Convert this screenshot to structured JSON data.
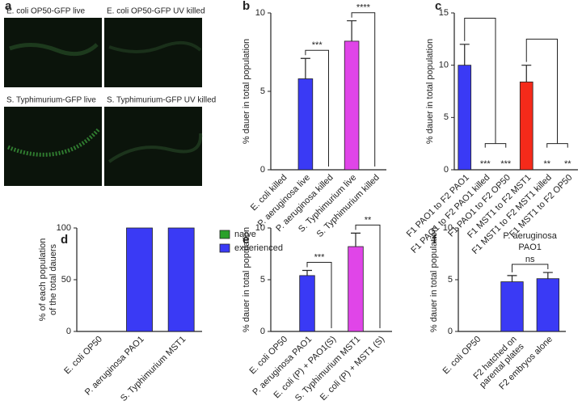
{
  "images": {
    "panel": "a",
    "captions": [
      "E. coli OP50-GFP live",
      "E. coli OP50-GFP UV killed",
      "S. Typhimurium-GFP live",
      "S. Typhimurium-GFP UV killed"
    ]
  },
  "chart_data": [
    {
      "type": "bar",
      "panel": "b",
      "ylabel": "% dauer in total population",
      "categories": [
        "E. coli killed",
        "P. aeruginosa live",
        "P. aeruginosa killed",
        "S. Typhimurium live",
        "S. Typhimurium killed"
      ],
      "values": [
        0,
        5.8,
        0,
        8.2,
        0
      ],
      "errors": [
        0,
        1.3,
        0,
        1.3,
        0
      ],
      "colors": [
        "#3a3af5",
        "#3a3af5",
        "#3a3af5",
        "#e045e8",
        "#e045e8"
      ],
      "ylim": [
        0,
        10
      ],
      "yticks": [
        0,
        5,
        10
      ],
      "brackets": [
        {
          "between": [
            1,
            2
          ],
          "text": "***"
        },
        {
          "between": [
            3,
            4
          ],
          "text": "****"
        }
      ]
    },
    {
      "type": "bar",
      "panel": "c",
      "ylabel": "% dauer in total population",
      "categories": [
        "F1 PAO1 to F2 PAO1",
        "F1 PAO1 to F2 PAO1 killed",
        "F1 PAO1 to F2 OP50",
        "F1 MST1 to F2 MST1",
        "F1 MST1 to F2 MST1 killed",
        "F1 MST1 to F2 OP50"
      ],
      "values": [
        10,
        0,
        0,
        8.4,
        0,
        0
      ],
      "errors": [
        2,
        0,
        0,
        1.6,
        0,
        0
      ],
      "colors": [
        "#3a3af5",
        "#3a3af5",
        "#3a3af5",
        "#f52a1a",
        "#f52a1a",
        "#f52a1a"
      ],
      "bar_labels": [
        null,
        "***",
        "***",
        null,
        "**",
        "**"
      ],
      "ylim": [
        0,
        15
      ],
      "yticks": [
        0,
        5,
        10,
        15
      ]
    },
    {
      "type": "stacked_bar",
      "panel": "d",
      "ylabel": [
        "% of each population",
        "of the total dauers"
      ],
      "categories": [
        "E. coli OP50",
        "P. aeruginosa PAO1",
        "S. Typhimurium MST1"
      ],
      "series": [
        {
          "name": "naïve",
          "color": "#2aa02a",
          "values": [
            0,
            0,
            0
          ]
        },
        {
          "name": "experienced",
          "color": "#3a3af5",
          "values": [
            0,
            100,
            100
          ]
        }
      ],
      "ylim": [
        0,
        100
      ],
      "yticks": [
        0,
        50,
        100
      ]
    },
    {
      "type": "bar",
      "panel": "e",
      "ylabel": "% dauer in total population",
      "categories": [
        "E. coli OP50",
        "P. aeruginosa PAO1",
        "E. coli (P) + PAO1(S)",
        "S. Typhimurium MST1",
        "E. coli (P) + MST1 (S)"
      ],
      "values": [
        0,
        5.4,
        0,
        8.2,
        0
      ],
      "errors": [
        0,
        0.5,
        0,
        1.3,
        0
      ],
      "colors": [
        "#3a3af5",
        "#3a3af5",
        "#3a3af5",
        "#e045e8",
        "#e045e8"
      ],
      "ylim": [
        0,
        10
      ],
      "yticks": [
        0,
        5,
        10
      ],
      "brackets": [
        {
          "between": [
            1,
            2
          ],
          "text": "***"
        },
        {
          "between": [
            3,
            4
          ],
          "text": "**"
        }
      ]
    },
    {
      "type": "bar",
      "panel": "f",
      "title": [
        "P. aeruginosa",
        "PAO1"
      ],
      "ylabel": "% dauer in total population",
      "categories": [
        "E. coli OP50",
        [
          "F2 hatched on",
          "parental plates"
        ],
        "F2 embryos alone"
      ],
      "values": [
        0,
        4.8,
        5.1
      ],
      "errors": [
        0,
        0.6,
        0.6
      ],
      "colors": [
        "#3a3af5",
        "#3a3af5",
        "#3a3af5"
      ],
      "ylim": [
        0,
        10
      ],
      "yticks": [
        0,
        5,
        10
      ],
      "brackets": [
        {
          "between": [
            1,
            2
          ],
          "text": "ns"
        }
      ]
    }
  ]
}
